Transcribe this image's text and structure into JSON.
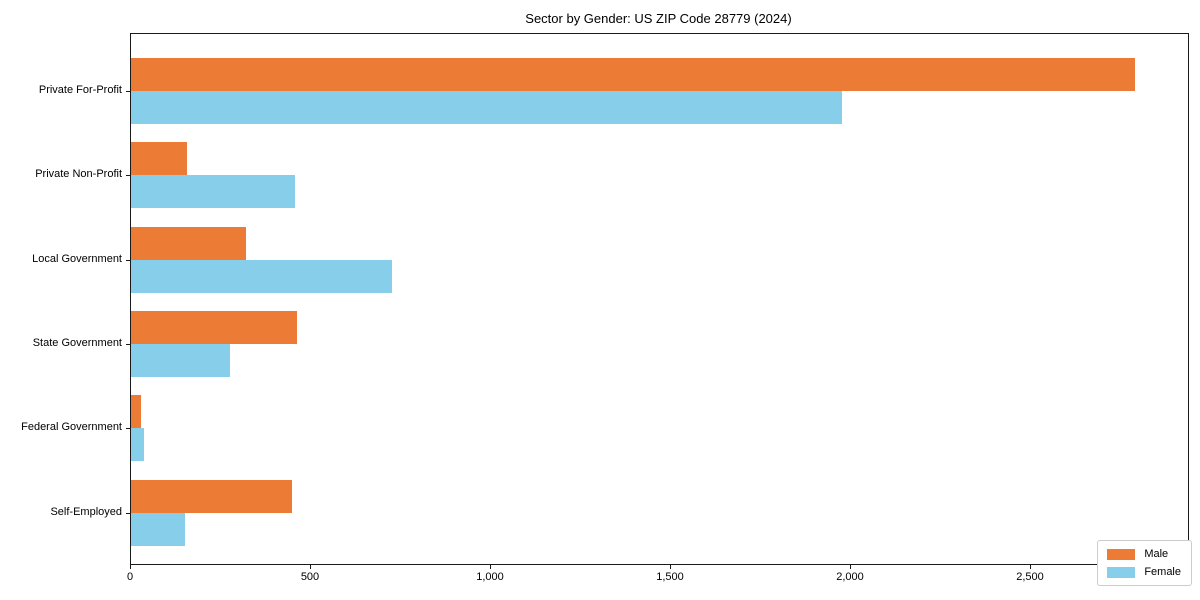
{
  "chart_data": {
    "type": "bar",
    "orientation": "horizontal",
    "title": "Sector by Gender: US ZIP Code 28779 (2024)",
    "categories": [
      "Private For-Profit",
      "Private Non-Profit",
      "Local Government",
      "State Government",
      "Federal Government",
      "Self-Employed"
    ],
    "series": [
      {
        "name": "Male",
        "color": "#EC7B35",
        "values": [
          2790,
          155,
          320,
          462,
          28,
          447
        ]
      },
      {
        "name": "Female",
        "color": "#87CEEB",
        "values": [
          1975,
          455,
          725,
          275,
          37,
          150
        ]
      }
    ],
    "xlabel": "",
    "ylabel": "",
    "xlim": [
      0,
      2936
    ],
    "xticks": [
      {
        "value": 0,
        "label": "0"
      },
      {
        "value": 500,
        "label": "500"
      },
      {
        "value": 1000,
        "label": "1,000"
      },
      {
        "value": 1500,
        "label": "1,500"
      },
      {
        "value": 2000,
        "label": "2,000"
      },
      {
        "value": 2500,
        "label": "2,500"
      }
    ],
    "grid": false,
    "legend": {
      "position": "lower right"
    }
  },
  "colors": {
    "background": "#ffffff",
    "axis": "#1a1a1a",
    "legend_border": "#cccccc"
  }
}
